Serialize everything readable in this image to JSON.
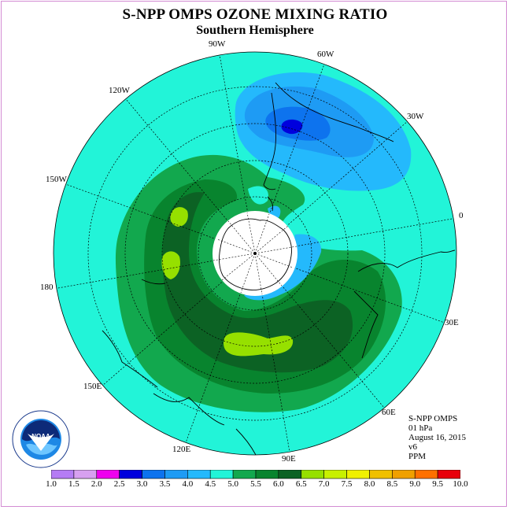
{
  "title": "S-NPP OMPS OZONE MIXING RATIO",
  "subtitle": "Southern Hemisphere",
  "longitude_labels": {
    "w90": "90W",
    "w60": "60W",
    "w30": "30W",
    "w120": "120W",
    "w150": "150W",
    "e0": "0",
    "e180": "180",
    "e30": "30E",
    "e150": "150E",
    "e60": "60E",
    "e120": "120E",
    "e90": "90E"
  },
  "metadata": {
    "instrument": "S-NPP OMPS",
    "pressure": "01 hPa",
    "date": "August 16, 2015",
    "version": "v6",
    "units": "PPM"
  },
  "logo": {
    "text": "NOAA",
    "icon": "noaa-logo-icon"
  },
  "colorbar": {
    "labels": [
      "1.0",
      "1.5",
      "2.0",
      "2.5",
      "3.0",
      "3.5",
      "4.0",
      "4.5",
      "5.0",
      "5.5",
      "6.0",
      "6.5",
      "7.0",
      "7.5",
      "8.0",
      "8.5",
      "9.0",
      "9.5",
      "10.0"
    ],
    "colors": [
      "#b57cf4",
      "#d7a0f0",
      "#ee00ee",
      "#0000dd",
      "#0d73ee",
      "#1e9bf4",
      "#24b9fc",
      "#22f4d8",
      "#12a84e",
      "#08842e",
      "#0c6224",
      "#96e000",
      "#c8f000",
      "#f0f000",
      "#f0c000",
      "#f0a000",
      "#ff7000",
      "#e8000a",
      "#8b4a2c"
    ]
  },
  "chart_data": {
    "type": "heatmap",
    "title": "S-NPP OMPS OZONE MIXING RATIO",
    "subtitle": "Southern Hemisphere",
    "projection": "south polar stereographic",
    "units": "PPM",
    "pressure_level_hpa": 1,
    "date": "August 16, 2015",
    "scale": [
      1.0,
      1.5,
      2.0,
      2.5,
      3.0,
      3.5,
      4.0,
      4.5,
      5.0,
      5.5,
      6.0,
      6.5,
      7.0,
      7.5,
      8.0,
      8.5,
      9.0,
      9.5,
      10.0
    ],
    "longitude_labels": [
      "0",
      "30E",
      "60E",
      "90E",
      "120E",
      "150E",
      "180",
      "150W",
      "120W",
      "90W",
      "60W",
      "30W"
    ]
  }
}
